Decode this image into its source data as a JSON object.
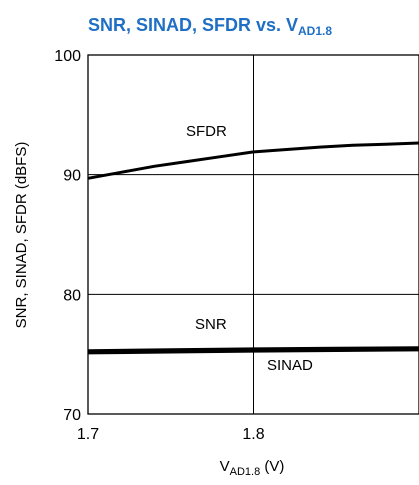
{
  "chart_data": {
    "type": "line",
    "title_main": "SNR, SINAD, SFDR vs. V",
    "title_sub": "AD1.8",
    "xlabel_main": "V",
    "xlabel_sub": "AD1.8",
    "xlabel_unit": " (V)",
    "ylabel": "SNR, SINAD, SFDR (dBFS)",
    "xlim": [
      1.7,
      1.9
    ],
    "ylim": [
      70,
      100
    ],
    "x_ticks": [
      1.7,
      1.8
    ],
    "x_tick_labels": [
      "1.7",
      "1.8"
    ],
    "y_ticks": [
      70,
      80,
      90,
      100
    ],
    "y_tick_labels": [
      "70",
      "80",
      "90",
      "100"
    ],
    "grid": true,
    "colors": {
      "title": "#1f6fc5",
      "line": "#000000"
    },
    "series": [
      {
        "name": "SFDR",
        "x": [
          1.7,
          1.72,
          1.74,
          1.76,
          1.78,
          1.8,
          1.82,
          1.84,
          1.86,
          1.88,
          1.9
        ],
        "y": [
          89.7,
          90.2,
          90.7,
          91.1,
          91.5,
          91.9,
          92.1,
          92.3,
          92.45,
          92.55,
          92.65
        ]
      },
      {
        "name": "SNR",
        "x": [
          1.7,
          1.75,
          1.8,
          1.85,
          1.9
        ],
        "y": [
          75.25,
          75.32,
          75.4,
          75.45,
          75.5
        ]
      },
      {
        "name": "SINAD",
        "x": [
          1.7,
          1.75,
          1.8,
          1.85,
          1.9
        ],
        "y": [
          75.15,
          75.22,
          75.3,
          75.35,
          75.4
        ]
      }
    ]
  }
}
